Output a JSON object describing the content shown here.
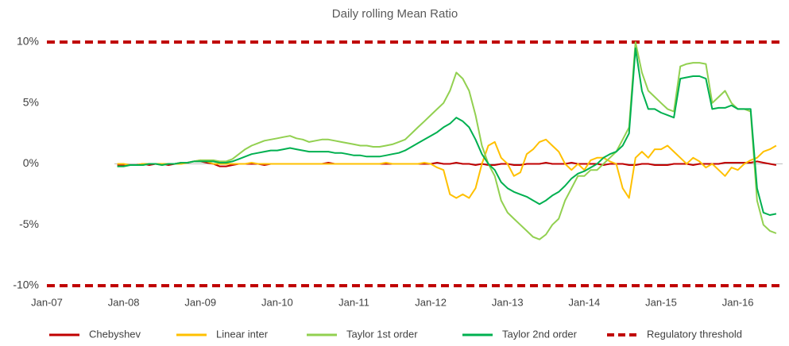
{
  "chart_data": {
    "type": "line",
    "title": "Daily rolling Mean Ratio",
    "x": [
      "2007-12",
      "2008-01",
      "2008-02",
      "2008-03",
      "2008-04",
      "2008-05",
      "2008-06",
      "2008-07",
      "2008-08",
      "2008-09",
      "2008-10",
      "2008-11",
      "2008-12",
      "2009-01",
      "2009-02",
      "2009-03",
      "2009-04",
      "2009-05",
      "2009-06",
      "2009-07",
      "2009-08",
      "2009-09",
      "2009-10",
      "2009-11",
      "2009-12",
      "2010-01",
      "2010-02",
      "2010-03",
      "2010-04",
      "2010-05",
      "2010-06",
      "2010-07",
      "2010-08",
      "2010-09",
      "2010-10",
      "2010-11",
      "2010-12",
      "2011-01",
      "2011-02",
      "2011-03",
      "2011-04",
      "2011-05",
      "2011-06",
      "2011-07",
      "2011-08",
      "2011-09",
      "2011-10",
      "2011-11",
      "2011-12",
      "2012-01",
      "2012-02",
      "2012-03",
      "2012-04",
      "2012-05",
      "2012-06",
      "2012-07",
      "2012-08",
      "2012-09",
      "2012-10",
      "2012-11",
      "2012-12",
      "2013-01",
      "2013-02",
      "2013-03",
      "2013-04",
      "2013-05",
      "2013-06",
      "2013-07",
      "2013-08",
      "2013-09",
      "2013-10",
      "2013-11",
      "2013-12",
      "2014-01",
      "2014-02",
      "2014-03",
      "2014-04",
      "2014-05",
      "2014-06",
      "2014-07",
      "2014-08",
      "2014-09",
      "2014-10",
      "2014-11",
      "2014-12",
      "2015-01",
      "2015-02",
      "2015-03",
      "2015-04",
      "2015-05",
      "2015-06",
      "2015-07",
      "2015-08",
      "2015-09",
      "2015-10",
      "2015-11",
      "2015-12",
      "2016-01",
      "2016-02",
      "2016-03",
      "2016-04",
      "2016-05",
      "2016-06",
      "2016-07"
    ],
    "series": [
      {
        "name": "Chebyshev",
        "color": "#c00000",
        "values": [
          -0.1,
          -0.1,
          -0.1,
          -0.1,
          0,
          -0.1,
          0,
          0,
          -0.1,
          0,
          0.1,
          0.1,
          0.2,
          0.2,
          0.1,
          0,
          -0.2,
          -0.2,
          -0.1,
          0,
          0,
          0,
          0,
          -0.1,
          0,
          0,
          0,
          0,
          0,
          0,
          0,
          0,
          0,
          0.1,
          0,
          0,
          0,
          0,
          0,
          0,
          0,
          0,
          0,
          0,
          0,
          0,
          0,
          0,
          0,
          0,
          0.1,
          0,
          0,
          0.1,
          0,
          0,
          -0.1,
          0,
          -0.1,
          -0.1,
          0,
          0,
          -0.1,
          -0.1,
          0,
          0,
          0,
          0.1,
          0,
          0,
          0,
          0.1,
          0,
          0,
          0,
          0,
          -0.1,
          0,
          0,
          0,
          -0.1,
          -0.1,
          0,
          0,
          -0.1,
          -0.1,
          -0.1,
          0,
          0,
          0,
          -0.1,
          0,
          0,
          0,
          0,
          0.1,
          0.1,
          0.1,
          0.1,
          0.1,
          0.2,
          0.1,
          0,
          -0.1
        ]
      },
      {
        "name": "Linear inter",
        "color": "#ffc000",
        "values": [
          0,
          0,
          -0.1,
          -0.1,
          0,
          0,
          0,
          0,
          0,
          0,
          0,
          0.1,
          0.2,
          0.3,
          0.2,
          0,
          0,
          0,
          0,
          0,
          0,
          0.1,
          0,
          0,
          0,
          0,
          0,
          0,
          0,
          0,
          0,
          0,
          0,
          0,
          0,
          0,
          0,
          0,
          0,
          0,
          0,
          0,
          0.1,
          0,
          0,
          0,
          0,
          0,
          0.1,
          0,
          -0.3,
          -0.5,
          -2.5,
          -2.8,
          -2.5,
          -2.8,
          -2,
          0,
          1.5,
          1.8,
          0.5,
          0,
          -1,
          -0.7,
          0.8,
          1.2,
          1.8,
          2,
          1.5,
          1,
          0,
          -0.5,
          0,
          -0.5,
          0.3,
          0.5,
          0.5,
          0.2,
          0,
          -2,
          -2.8,
          0.5,
          1,
          0.5,
          1.2,
          1.2,
          1.5,
          1,
          0.5,
          0,
          0.5,
          0.2,
          -0.3,
          0,
          -0.5,
          -1,
          -0.3,
          -0.5,
          0,
          0.3,
          0.5,
          1,
          1.2,
          1.5
        ]
      },
      {
        "name": "Taylor 1st order",
        "color": "#92d050",
        "values": [
          -0.2,
          -0.2,
          -0.1,
          -0.1,
          -0.1,
          0,
          0,
          -0.1,
          0,
          0,
          0.1,
          0.1,
          0.2,
          0.3,
          0.3,
          0.3,
          0.2,
          0.2,
          0.4,
          0.8,
          1.2,
          1.5,
          1.7,
          1.9,
          2,
          2.1,
          2.2,
          2.3,
          2.1,
          2,
          1.8,
          1.9,
          2,
          2,
          1.9,
          1.8,
          1.7,
          1.6,
          1.5,
          1.5,
          1.4,
          1.4,
          1.5,
          1.6,
          1.8,
          2,
          2.5,
          3,
          3.5,
          4,
          4.5,
          5,
          6,
          7.5,
          7,
          6,
          4,
          1.5,
          0,
          -1,
          -3,
          -4,
          -4.5,
          -5,
          -5.5,
          -6,
          -6.2,
          -5.8,
          -5,
          -4.5,
          -3,
          -2,
          -1,
          -1,
          -0.5,
          -0.5,
          0,
          0.5,
          1,
          2,
          3,
          10,
          7.5,
          6,
          5.5,
          5,
          4.5,
          4.3,
          8,
          8.2,
          8.3,
          8.3,
          8.2,
          5,
          5.5,
          6,
          5,
          4.5,
          4.5,
          4.3,
          -3,
          -5,
          -5.5,
          -5.7
        ]
      },
      {
        "name": "Taylor 2nd  order",
        "color": "#00b050",
        "values": [
          -0.2,
          -0.2,
          -0.1,
          -0.1,
          -0.1,
          0,
          0,
          -0.1,
          0,
          0,
          0.1,
          0.1,
          0.2,
          0.2,
          0.2,
          0.2,
          0.1,
          0.1,
          0.2,
          0.4,
          0.6,
          0.8,
          0.9,
          1,
          1.1,
          1.1,
          1.2,
          1.3,
          1.2,
          1.1,
          1,
          1,
          1,
          1,
          0.9,
          0.9,
          0.8,
          0.7,
          0.7,
          0.6,
          0.6,
          0.6,
          0.7,
          0.8,
          0.9,
          1.1,
          1.4,
          1.7,
          2,
          2.3,
          2.6,
          3,
          3.3,
          3.8,
          3.5,
          3,
          2,
          0.8,
          0,
          -0.5,
          -1.5,
          -2,
          -2.3,
          -2.5,
          -2.7,
          -3,
          -3.3,
          -3,
          -2.6,
          -2.3,
          -1.8,
          -1.2,
          -0.8,
          -0.6,
          -0.3,
          0,
          0.5,
          0.8,
          1,
          1.5,
          2.5,
          9.5,
          6,
          4.5,
          4.5,
          4.2,
          4,
          3.8,
          7,
          7.1,
          7.2,
          7.2,
          7,
          4.5,
          4.6,
          4.6,
          4.8,
          4.5,
          4.5,
          4.5,
          -2,
          -4,
          -4.2,
          -4.1
        ]
      }
    ],
    "threshold": {
      "name": "Regulatory threshold",
      "color": "#c00000",
      "values": [
        10,
        -10
      ]
    },
    "xlim": [
      "2007-01",
      "2016-08"
    ],
    "xticks": [
      {
        "value": "2007-01",
        "label": "Jan-07"
      },
      {
        "value": "2008-01",
        "label": "Jan-08"
      },
      {
        "value": "2009-01",
        "label": "Jan-09"
      },
      {
        "value": "2010-01",
        "label": "Jan-10"
      },
      {
        "value": "2011-01",
        "label": "Jan-11"
      },
      {
        "value": "2012-01",
        "label": "Jan-12"
      },
      {
        "value": "2013-01",
        "label": "Jan-13"
      },
      {
        "value": "2014-01",
        "label": "Jan-14"
      },
      {
        "value": "2015-01",
        "label": "Jan-15"
      },
      {
        "value": "2016-01",
        "label": "Jan-16"
      }
    ],
    "ylim": [
      -10,
      10
    ],
    "yticks": [
      {
        "value": -10,
        "label": "-10%"
      },
      {
        "value": -5,
        "label": "-5%"
      },
      {
        "value": 0,
        "label": "0%"
      },
      {
        "value": 5,
        "label": "5%"
      },
      {
        "value": 10,
        "label": "10%"
      }
    ],
    "legend": "bottom"
  }
}
